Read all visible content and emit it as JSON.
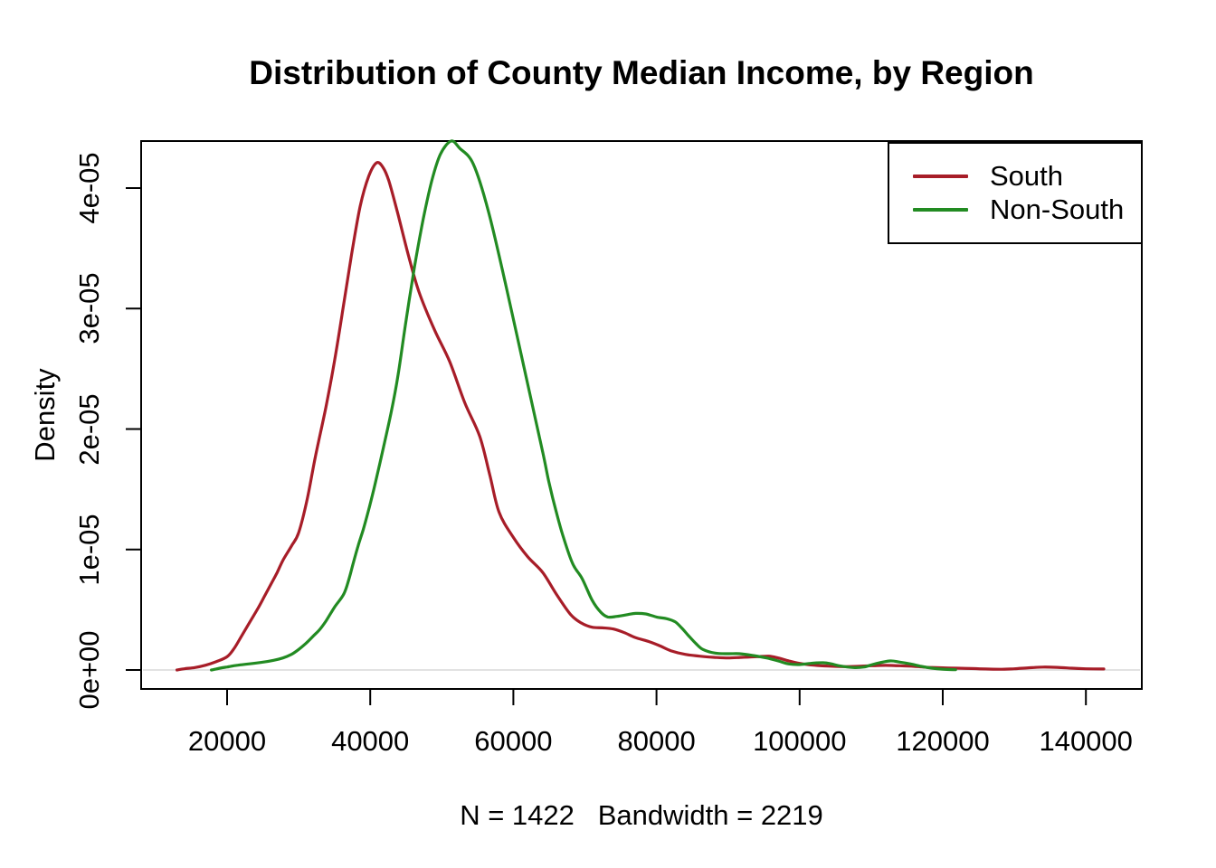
{
  "title": "Distribution of County Median Income, by Region",
  "chart_data": {
    "type": "line",
    "variant": "kernel-density",
    "title": "Distribution of County Median Income, by Region",
    "ylabel": "Density",
    "xlabel": "N = 1422   Bandwidth = 2219",
    "n": 1422,
    "bandwidth": 2219,
    "grid": false,
    "legend_position": "topright",
    "zero_line_color": "#D9D9D9",
    "axis_color": "#000000",
    "xlim": [
      7900,
      148300
    ],
    "ylim": [
      0,
      4.4e-05
    ],
    "y_unit_note": "density values stored as multiples of 1e-05",
    "x_ticks": [
      {
        "v": 20000,
        "label": "20000"
      },
      {
        "v": 40000,
        "label": "40000"
      },
      {
        "v": 60000,
        "label": "60000"
      },
      {
        "v": 80000,
        "label": "80000"
      },
      {
        "v": 100000,
        "label": "100000"
      },
      {
        "v": 120000,
        "label": "120000"
      },
      {
        "v": 140000,
        "label": "140000"
      }
    ],
    "y_ticks": [
      {
        "v": 0,
        "label": "0e+00"
      },
      {
        "v": 1,
        "label": "1e-05"
      },
      {
        "v": 2,
        "label": "2e-05"
      },
      {
        "v": 3,
        "label": "3e-05"
      },
      {
        "v": 4,
        "label": "4e-05"
      }
    ],
    "point_format": "[median_income_dollars, density_x_1e-05]",
    "series": [
      {
        "name": "South",
        "color": "#A71D28",
        "points": [
          [
            13000,
            0.0
          ],
          [
            14000,
            0.01
          ],
          [
            15500,
            0.02
          ],
          [
            17000,
            0.04
          ],
          [
            18500,
            0.07
          ],
          [
            20000,
            0.11
          ],
          [
            21000,
            0.18
          ],
          [
            22100,
            0.29
          ],
          [
            23200,
            0.4
          ],
          [
            24300,
            0.51
          ],
          [
            25300,
            0.62
          ],
          [
            26200,
            0.72
          ],
          [
            27000,
            0.81
          ],
          [
            27800,
            0.91
          ],
          [
            29000,
            1.03
          ],
          [
            30000,
            1.14
          ],
          [
            31200,
            1.42
          ],
          [
            32300,
            1.76
          ],
          [
            33800,
            2.18
          ],
          [
            35000,
            2.56
          ],
          [
            36200,
            3.0
          ],
          [
            37400,
            3.45
          ],
          [
            38600,
            3.85
          ],
          [
            39800,
            4.1
          ],
          [
            40900,
            4.21
          ],
          [
            41800,
            4.17
          ],
          [
            42600,
            4.06
          ],
          [
            43800,
            3.8
          ],
          [
            45300,
            3.45
          ],
          [
            46800,
            3.14
          ],
          [
            49000,
            2.82
          ],
          [
            51100,
            2.56
          ],
          [
            53200,
            2.22
          ],
          [
            55300,
            1.94
          ],
          [
            56700,
            1.62
          ],
          [
            58000,
            1.31
          ],
          [
            60000,
            1.1
          ],
          [
            62000,
            0.94
          ],
          [
            64100,
            0.81
          ],
          [
            66000,
            0.63
          ],
          [
            68000,
            0.46
          ],
          [
            69500,
            0.39
          ],
          [
            71000,
            0.355
          ],
          [
            72500,
            0.35
          ],
          [
            74000,
            0.34
          ],
          [
            75500,
            0.31
          ],
          [
            77000,
            0.27
          ],
          [
            79000,
            0.235
          ],
          [
            80500,
            0.2
          ],
          [
            82000,
            0.16
          ],
          [
            84000,
            0.13
          ],
          [
            86000,
            0.115
          ],
          [
            88000,
            0.105
          ],
          [
            90000,
            0.1
          ],
          [
            92000,
            0.105
          ],
          [
            94000,
            0.11
          ],
          [
            95700,
            0.115
          ],
          [
            97000,
            0.1
          ],
          [
            98500,
            0.075
          ],
          [
            100000,
            0.055
          ],
          [
            102000,
            0.04
          ],
          [
            104000,
            0.032
          ],
          [
            106000,
            0.028
          ],
          [
            108000,
            0.03
          ],
          [
            110000,
            0.035
          ],
          [
            112000,
            0.038
          ],
          [
            114000,
            0.035
          ],
          [
            116000,
            0.03
          ],
          [
            118000,
            0.022
          ],
          [
            120000,
            0.018
          ],
          [
            122000,
            0.015
          ],
          [
            124000,
            0.012
          ],
          [
            126000,
            0.008
          ],
          [
            128000,
            0.006
          ],
          [
            130000,
            0.01
          ],
          [
            132000,
            0.018
          ],
          [
            134000,
            0.024
          ],
          [
            136000,
            0.022
          ],
          [
            138000,
            0.015
          ],
          [
            140000,
            0.01
          ],
          [
            142500,
            0.008
          ]
        ]
      },
      {
        "name": "Non-South",
        "color": "#228B22",
        "points": [
          [
            17800,
            0.0
          ],
          [
            19000,
            0.015
          ],
          [
            20000,
            0.025
          ],
          [
            21500,
            0.04
          ],
          [
            23000,
            0.05
          ],
          [
            25000,
            0.065
          ],
          [
            26500,
            0.08
          ],
          [
            27800,
            0.1
          ],
          [
            29000,
            0.13
          ],
          [
            30000,
            0.17
          ],
          [
            31000,
            0.22
          ],
          [
            32100,
            0.285
          ],
          [
            33000,
            0.34
          ],
          [
            33800,
            0.405
          ],
          [
            35000,
            0.52
          ],
          [
            36300,
            0.63
          ],
          [
            37000,
            0.75
          ],
          [
            37600,
            0.88
          ],
          [
            38300,
            1.03
          ],
          [
            39000,
            1.16
          ],
          [
            39700,
            1.31
          ],
          [
            40500,
            1.5
          ],
          [
            41400,
            1.73
          ],
          [
            42900,
            2.13
          ],
          [
            43900,
            2.45
          ],
          [
            45000,
            2.9
          ],
          [
            46200,
            3.35
          ],
          [
            47400,
            3.74
          ],
          [
            48600,
            4.06
          ],
          [
            49800,
            4.28
          ],
          [
            51300,
            4.39
          ],
          [
            52500,
            4.33
          ],
          [
            54400,
            4.2
          ],
          [
            56500,
            3.81
          ],
          [
            59000,
            3.18
          ],
          [
            61600,
            2.48
          ],
          [
            64100,
            1.81
          ],
          [
            65000,
            1.55
          ],
          [
            66000,
            1.31
          ],
          [
            67000,
            1.1
          ],
          [
            68300,
            0.88
          ],
          [
            69600,
            0.76
          ],
          [
            71000,
            0.58
          ],
          [
            72200,
            0.48
          ],
          [
            73200,
            0.44
          ],
          [
            74500,
            0.445
          ],
          [
            76000,
            0.46
          ],
          [
            77100,
            0.47
          ],
          [
            78500,
            0.465
          ],
          [
            80000,
            0.44
          ],
          [
            81500,
            0.425
          ],
          [
            82600,
            0.4
          ],
          [
            83500,
            0.35
          ],
          [
            84400,
            0.29
          ],
          [
            85500,
            0.22
          ],
          [
            86500,
            0.17
          ],
          [
            88200,
            0.14
          ],
          [
            90000,
            0.135
          ],
          [
            91600,
            0.135
          ],
          [
            93500,
            0.12
          ],
          [
            95400,
            0.1
          ],
          [
            97000,
            0.075
          ],
          [
            98500,
            0.05
          ],
          [
            100000,
            0.045
          ],
          [
            101500,
            0.055
          ],
          [
            103300,
            0.06
          ],
          [
            104500,
            0.05
          ],
          [
            105500,
            0.035
          ],
          [
            107500,
            0.02
          ],
          [
            109000,
            0.025
          ],
          [
            110500,
            0.05
          ],
          [
            112600,
            0.075
          ],
          [
            114000,
            0.065
          ],
          [
            115500,
            0.05
          ],
          [
            117000,
            0.03
          ],
          [
            118500,
            0.015
          ],
          [
            120000,
            0.007
          ],
          [
            121800,
            0.002
          ]
        ]
      }
    ]
  },
  "legend": {
    "items": [
      {
        "label": "South",
        "color": "#A71D28"
      },
      {
        "label": "Non-South",
        "color": "#228B22"
      }
    ]
  }
}
